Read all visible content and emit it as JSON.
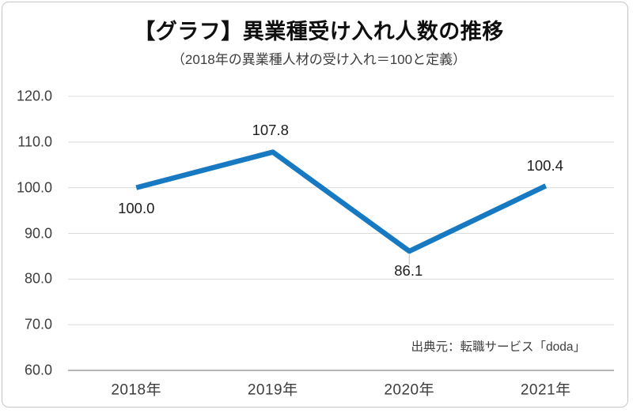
{
  "chart_data": {
    "type": "line",
    "title": "【グラフ】異業種受け入れ人数の推移",
    "subtitle": "（2018年の異業種人材の受け入れ＝100と定義）",
    "categories": [
      "2018年",
      "2019年",
      "2020年",
      "2021年"
    ],
    "values": [
      100.0,
      107.8,
      86.1,
      100.4
    ],
    "data_labels": [
      "100.0",
      "107.8",
      "86.1",
      "100.4"
    ],
    "ylim": [
      60.0,
      120.0
    ],
    "yticks": [
      120.0,
      110.0,
      100.0,
      90.0,
      80.0,
      70.0,
      60.0
    ],
    "ytick_labels": [
      "120.0",
      "110.0",
      "100.0",
      "90.0",
      "80.0",
      "70.0",
      "60.0"
    ],
    "grid": true,
    "legend": "none",
    "source_note": "出典元：転職サービス「doda」",
    "colors": {
      "line": "#1779c2",
      "gridline": "#d9d9d9",
      "axis_line": "#9d9d9d",
      "leader_line": "#bfbfbf",
      "tick_text": "#3d3d3d",
      "data_label_text": "#1d1d1d",
      "title_text": "#0f0f0f"
    }
  }
}
